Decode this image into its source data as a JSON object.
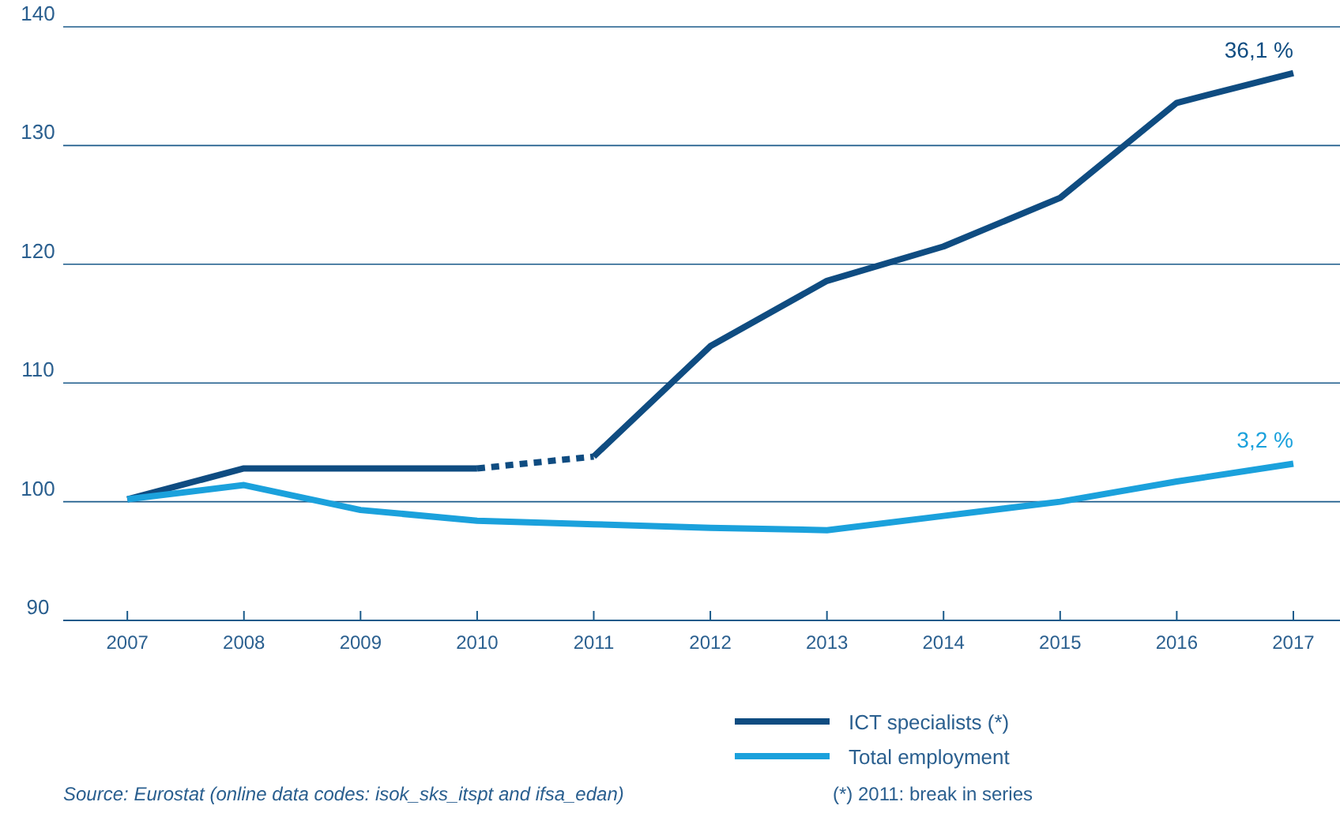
{
  "chart_data": {
    "type": "line",
    "x": [
      2007,
      2008,
      2009,
      2010,
      2011,
      2012,
      2013,
      2014,
      2015,
      2016,
      2017
    ],
    "xlim": [
      2006.45,
      2017.4
    ],
    "xticks": [
      2007,
      2008,
      2009,
      2010,
      2011,
      2012,
      2013,
      2014,
      2015,
      2016,
      2017
    ],
    "ylim": [
      90,
      140
    ],
    "yticks": [
      90,
      100,
      110,
      120,
      130,
      140
    ],
    "grid": "y",
    "legend": "bottom right",
    "line_style": "solid",
    "marker": "none",
    "series": [
      {
        "name": "ICT specialists (*)",
        "color": "#0f4c81",
        "x": [
          2007,
          2008,
          2009,
          2010
        ],
        "values": [
          100.2,
          102.8,
          102.8,
          102.8
        ]
      },
      {
        "color": "#0f4c81",
        "x": [
          2010,
          2011
        ],
        "values": [
          102.8,
          103.8
        ],
        "line_style": "dashed"
      },
      {
        "color": "#0f4c81",
        "x": [
          2011,
          2012,
          2013,
          2014,
          2015,
          2016,
          2017
        ],
        "values": [
          103.8,
          113.1,
          118.6,
          121.5,
          125.6,
          133.6,
          136.1
        ]
      },
      {
        "name": "Total employment",
        "color": "#1ba1dc",
        "values": [
          100.2,
          101.4,
          99.3,
          98.4,
          98.1,
          97.8,
          97.6,
          98.8,
          100.0,
          101.7,
          103.2
        ]
      }
    ],
    "annotations": [
      {
        "text": "36,1 %",
        "x": 2017,
        "y": 136.1
      },
      {
        "text": "3,2 %",
        "x": 2017,
        "y": 103.2
      },
      "Source: Eurostat (online data codes: isok_sks_itspt and ifsa_edan)",
      "(*) 2011: break in series"
    ]
  }
}
